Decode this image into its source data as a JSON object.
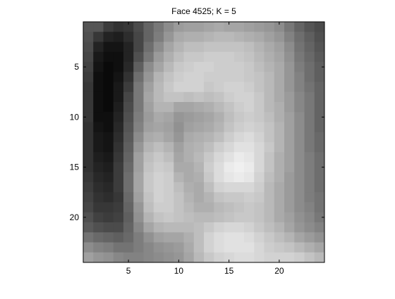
{
  "chart_data": {
    "type": "heatmap",
    "colormap": "gray",
    "title": "Face 4525; K = 5",
    "xlabel": "",
    "ylabel": "",
    "xlim": [
      0.5,
      24.5
    ],
    "ylim": [
      0.5,
      24.5
    ],
    "y_direction": "reversed",
    "grid": false,
    "x_ticks": [
      5,
      10,
      15,
      20
    ],
    "y_ticks": [
      5,
      10,
      15,
      20
    ],
    "x_tick_labels": [
      "5",
      "10",
      "15",
      "20"
    ],
    "y_tick_labels": [
      "5",
      "10",
      "15",
      "20"
    ],
    "values": [
      [
        85,
        85,
        60,
        50,
        55,
        75,
        100,
        120,
        140,
        155,
        160,
        160,
        165,
        170,
        165,
        165,
        160,
        155,
        150,
        140,
        120,
        100,
        85,
        75
      ],
      [
        80,
        55,
        35,
        30,
        45,
        70,
        100,
        125,
        150,
        170,
        175,
        175,
        180,
        185,
        185,
        180,
        175,
        170,
        160,
        150,
        130,
        110,
        95,
        80
      ],
      [
        75,
        35,
        20,
        20,
        35,
        70,
        110,
        140,
        165,
        180,
        190,
        190,
        195,
        195,
        195,
        195,
        190,
        180,
        170,
        160,
        140,
        115,
        100,
        85
      ],
      [
        70,
        25,
        15,
        15,
        35,
        80,
        120,
        155,
        175,
        190,
        200,
        200,
        205,
        205,
        205,
        200,
        195,
        185,
        175,
        165,
        145,
        120,
        105,
        90
      ],
      [
        65,
        20,
        10,
        15,
        40,
        95,
        140,
        165,
        185,
        200,
        205,
        210,
        210,
        205,
        205,
        205,
        200,
        190,
        180,
        170,
        150,
        125,
        110,
        95
      ],
      [
        60,
        15,
        10,
        20,
        50,
        110,
        150,
        180,
        195,
        205,
        210,
        210,
        205,
        205,
        205,
        205,
        200,
        195,
        185,
        170,
        150,
        130,
        110,
        95
      ],
      [
        55,
        15,
        10,
        25,
        60,
        120,
        160,
        185,
        200,
        210,
        210,
        210,
        200,
        205,
        210,
        210,
        205,
        195,
        185,
        170,
        150,
        130,
        115,
        100
      ],
      [
        55,
        15,
        10,
        25,
        70,
        120,
        165,
        185,
        195,
        195,
        190,
        195,
        190,
        195,
        205,
        210,
        210,
        200,
        185,
        170,
        155,
        135,
        120,
        100
      ],
      [
        55,
        15,
        10,
        30,
        75,
        120,
        160,
        180,
        180,
        165,
        165,
        170,
        175,
        185,
        195,
        205,
        210,
        200,
        185,
        175,
        155,
        135,
        120,
        100
      ],
      [
        55,
        15,
        15,
        35,
        80,
        125,
        155,
        170,
        165,
        150,
        155,
        160,
        165,
        175,
        190,
        200,
        205,
        200,
        190,
        175,
        160,
        140,
        120,
        100
      ],
      [
        50,
        20,
        15,
        40,
        85,
        130,
        160,
        165,
        160,
        145,
        160,
        165,
        170,
        180,
        195,
        205,
        210,
        205,
        195,
        180,
        160,
        140,
        120,
        100
      ],
      [
        50,
        25,
        20,
        45,
        90,
        140,
        170,
        175,
        165,
        150,
        170,
        175,
        180,
        190,
        205,
        215,
        220,
        210,
        195,
        180,
        160,
        140,
        120,
        105
      ],
      [
        50,
        25,
        20,
        50,
        95,
        150,
        180,
        190,
        180,
        160,
        175,
        180,
        190,
        205,
        215,
        225,
        225,
        215,
        200,
        180,
        160,
        140,
        120,
        105
      ],
      [
        50,
        30,
        25,
        55,
        100,
        160,
        190,
        200,
        190,
        165,
        175,
        185,
        200,
        215,
        225,
        235,
        230,
        215,
        195,
        175,
        160,
        140,
        125,
        110
      ],
      [
        50,
        35,
        30,
        60,
        105,
        160,
        195,
        205,
        200,
        170,
        170,
        180,
        205,
        220,
        235,
        240,
        235,
        215,
        195,
        175,
        160,
        140,
        125,
        110
      ],
      [
        55,
        40,
        35,
        60,
        110,
        165,
        200,
        210,
        205,
        180,
        170,
        175,
        200,
        220,
        230,
        235,
        230,
        210,
        190,
        175,
        155,
        140,
        125,
        110
      ],
      [
        60,
        45,
        40,
        60,
        110,
        165,
        200,
        210,
        205,
        190,
        175,
        170,
        190,
        210,
        215,
        215,
        215,
        205,
        185,
        170,
        155,
        140,
        125,
        110
      ],
      [
        65,
        50,
        45,
        55,
        105,
        160,
        195,
        210,
        205,
        195,
        180,
        170,
        180,
        195,
        200,
        200,
        205,
        200,
        185,
        170,
        155,
        140,
        125,
        115
      ],
      [
        70,
        55,
        55,
        60,
        100,
        150,
        190,
        205,
        205,
        195,
        185,
        175,
        175,
        185,
        190,
        195,
        200,
        195,
        185,
        170,
        155,
        140,
        130,
        115
      ],
      [
        80,
        65,
        60,
        65,
        95,
        145,
        180,
        195,
        200,
        195,
        190,
        185,
        185,
        190,
        195,
        200,
        200,
        195,
        185,
        170,
        160,
        145,
        135,
        120
      ],
      [
        90,
        80,
        75,
        75,
        100,
        135,
        165,
        180,
        185,
        185,
        185,
        190,
        200,
        210,
        215,
        215,
        210,
        200,
        190,
        180,
        165,
        150,
        140,
        130
      ],
      [
        115,
        105,
        100,
        95,
        105,
        125,
        145,
        160,
        165,
        165,
        175,
        190,
        210,
        220,
        225,
        225,
        220,
        210,
        200,
        190,
        180,
        165,
        155,
        145
      ],
      [
        140,
        130,
        125,
        115,
        115,
        125,
        135,
        145,
        150,
        155,
        170,
        190,
        210,
        220,
        225,
        225,
        225,
        215,
        205,
        200,
        195,
        185,
        175,
        165
      ],
      [
        160,
        150,
        145,
        135,
        130,
        130,
        135,
        140,
        145,
        150,
        165,
        185,
        200,
        210,
        215,
        220,
        220,
        215,
        210,
        210,
        210,
        205,
        195,
        185
      ]
    ]
  }
}
